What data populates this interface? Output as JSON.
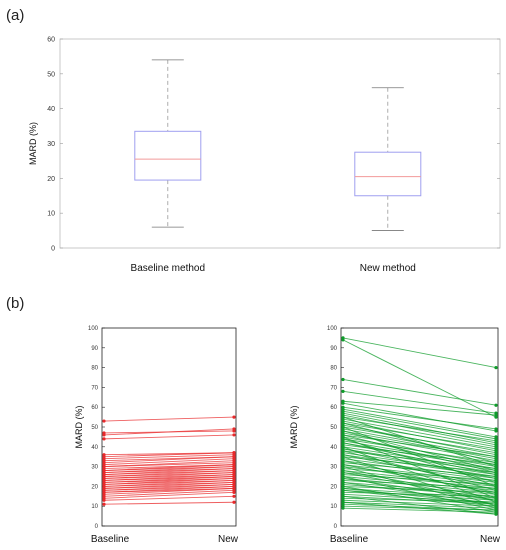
{
  "panel_labels": [
    "(a)",
    "(b)"
  ],
  "chart_data": [
    {
      "type": "box",
      "ylabel": "MARD (%)",
      "ylim": [
        0,
        60
      ],
      "yticks": [
        "0",
        "10",
        "20",
        "30",
        "40",
        "50",
        "60"
      ],
      "categories": [
        "Baseline method",
        "New method"
      ],
      "boxes": [
        {
          "min": 6,
          "q1": 19.5,
          "median": 25.5,
          "q3": 33.5,
          "max": 54
        },
        {
          "min": 5,
          "q1": 15,
          "median": 20.5,
          "q3": 27.5,
          "max": 46
        }
      ],
      "colors": {
        "box": "#9f9ff0",
        "median": "#f29a9a",
        "whisker": "#9a9a9a"
      }
    },
    {
      "type": "line",
      "ylabel": "MARD (%)",
      "ylim": [
        0,
        100
      ],
      "yticks": [
        "0",
        "10",
        "20",
        "30",
        "40",
        "50",
        "60",
        "70",
        "80",
        "90",
        "100"
      ],
      "categories": [
        "Baseline",
        "New"
      ],
      "color": "#e8292b",
      "pairs": [
        [
          53,
          55
        ],
        [
          47,
          48
        ],
        [
          46,
          49
        ],
        [
          44,
          46
        ],
        [
          36,
          37
        ],
        [
          35,
          37
        ],
        [
          34,
          36
        ],
        [
          33,
          35
        ],
        [
          32,
          35
        ],
        [
          31,
          34
        ],
        [
          30,
          33
        ],
        [
          30,
          32
        ],
        [
          29,
          31
        ],
        [
          28,
          31
        ],
        [
          28,
          30
        ],
        [
          27,
          30
        ],
        [
          27,
          29
        ],
        [
          26,
          29
        ],
        [
          26,
          28
        ],
        [
          25,
          28
        ],
        [
          25,
          27
        ],
        [
          24,
          27
        ],
        [
          24,
          26
        ],
        [
          23,
          26
        ],
        [
          23,
          25
        ],
        [
          22,
          25
        ],
        [
          22,
          24
        ],
        [
          21,
          24
        ],
        [
          21,
          23
        ],
        [
          20,
          23
        ],
        [
          20,
          22
        ],
        [
          19,
          22
        ],
        [
          19,
          21
        ],
        [
          18,
          21
        ],
        [
          18,
          20
        ],
        [
          17,
          20
        ],
        [
          17,
          19
        ],
        [
          16,
          19
        ],
        [
          15,
          18
        ],
        [
          14,
          17
        ],
        [
          13,
          15
        ],
        [
          11,
          12
        ]
      ]
    },
    {
      "type": "line",
      "ylabel": "MARD (%)",
      "ylim": [
        0,
        100
      ],
      "yticks": [
        "0",
        "10",
        "20",
        "30",
        "40",
        "50",
        "60",
        "70",
        "80",
        "90",
        "100"
      ],
      "categories": [
        "Baseline",
        "New"
      ],
      "color": "#0e9c2a",
      "pairs": [
        [
          95,
          80
        ],
        [
          94,
          55
        ],
        [
          74,
          61
        ],
        [
          68,
          57
        ],
        [
          63,
          56
        ],
        [
          62,
          48
        ],
        [
          60,
          49
        ],
        [
          59,
          45
        ],
        [
          58,
          44
        ],
        [
          57,
          42
        ],
        [
          56,
          41
        ],
        [
          55,
          43
        ],
        [
          54,
          40
        ],
        [
          53,
          38
        ],
        [
          52,
          39
        ],
        [
          51,
          36
        ],
        [
          50,
          37
        ],
        [
          49,
          35
        ],
        [
          48,
          34
        ],
        [
          47,
          33
        ],
        [
          46,
          35
        ],
        [
          45,
          31
        ],
        [
          44,
          32
        ],
        [
          43,
          30
        ],
        [
          42,
          29
        ],
        [
          41,
          31
        ],
        [
          40,
          28
        ],
        [
          39,
          27
        ],
        [
          38,
          29
        ],
        [
          37,
          26
        ],
        [
          36,
          25
        ],
        [
          35,
          27
        ],
        [
          34,
          24
        ],
        [
          33,
          23
        ],
        [
          32,
          25
        ],
        [
          31,
          22
        ],
        [
          30,
          21
        ],
        [
          29,
          23
        ],
        [
          28,
          20
        ],
        [
          27,
          19
        ],
        [
          26,
          21
        ],
        [
          25,
          18
        ],
        [
          24,
          17
        ],
        [
          23,
          19
        ],
        [
          22,
          16
        ],
        [
          21,
          15
        ],
        [
          20,
          17
        ],
        [
          19,
          14
        ],
        [
          18,
          13
        ],
        [
          17,
          15
        ],
        [
          16,
          12
        ],
        [
          15,
          11
        ],
        [
          14,
          12
        ],
        [
          13,
          10
        ],
        [
          12,
          9
        ],
        [
          11,
          8
        ],
        [
          10,
          8
        ],
        [
          9,
          7
        ],
        [
          50,
          20
        ],
        [
          45,
          14
        ],
        [
          40,
          12
        ],
        [
          35,
          10
        ],
        [
          30,
          9
        ],
        [
          25,
          8
        ],
        [
          20,
          7
        ],
        [
          15,
          6
        ],
        [
          12,
          6
        ],
        [
          55,
          30
        ],
        [
          48,
          28
        ],
        [
          42,
          26
        ],
        [
          38,
          18
        ],
        [
          33,
          16
        ],
        [
          28,
          14
        ],
        [
          22,
          11
        ],
        [
          18,
          10
        ],
        [
          44,
          22
        ],
        [
          36,
          20
        ],
        [
          27,
          13
        ],
        [
          52,
          32
        ],
        [
          46,
          27
        ],
        [
          39,
          24
        ],
        [
          31,
          17
        ],
        [
          24,
          13
        ],
        [
          19,
          11
        ]
      ]
    }
  ]
}
